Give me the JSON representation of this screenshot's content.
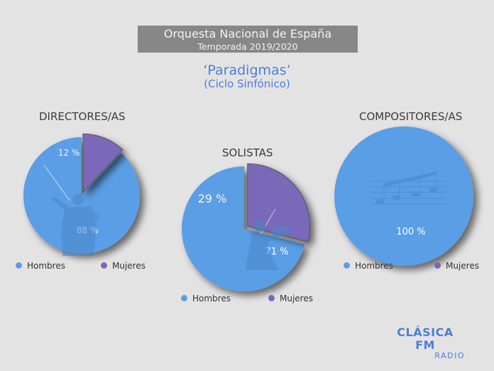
{
  "header": {
    "line1": "Orquesta Nacional de España",
    "line2": "Temporada 2019/2020"
  },
  "subtitle": {
    "line1": "‘Paradigmas’",
    "line2": "(Ciclo Sinfónico)"
  },
  "colors": {
    "hombres": "#5a9fe6",
    "mujeres": "#7a67b8",
    "header_bg": "#878787",
    "accent": "#4a7fd6",
    "background": "#e4e3e4"
  },
  "legend": {
    "hombres": "Hombres",
    "mujeres": "Mujeres"
  },
  "brand": {
    "name": "CLÁSICA FM",
    "sub": "RADIO"
  },
  "icons": [
    "conductor-silhouette-icon",
    "violinist-silhouette-icon",
    "music-notes-icon"
  ],
  "chart_data": [
    {
      "type": "pie",
      "title": "DIRECTORES/AS",
      "slices": [
        {
          "name": "Hombres",
          "value": 88,
          "label": "88 %"
        },
        {
          "name": "Mujeres",
          "value": 12,
          "label": "12 %"
        }
      ]
    },
    {
      "type": "pie",
      "title": "SOLISTAS",
      "slices": [
        {
          "name": "Hombres",
          "value": 71,
          "label": "71 %"
        },
        {
          "name": "Mujeres",
          "value": 29,
          "label": "29 %"
        }
      ]
    },
    {
      "type": "pie",
      "title": "COMPOSITORES/AS",
      "slices": [
        {
          "name": "Hombres",
          "value": 100,
          "label": "100 %"
        }
      ]
    }
  ]
}
